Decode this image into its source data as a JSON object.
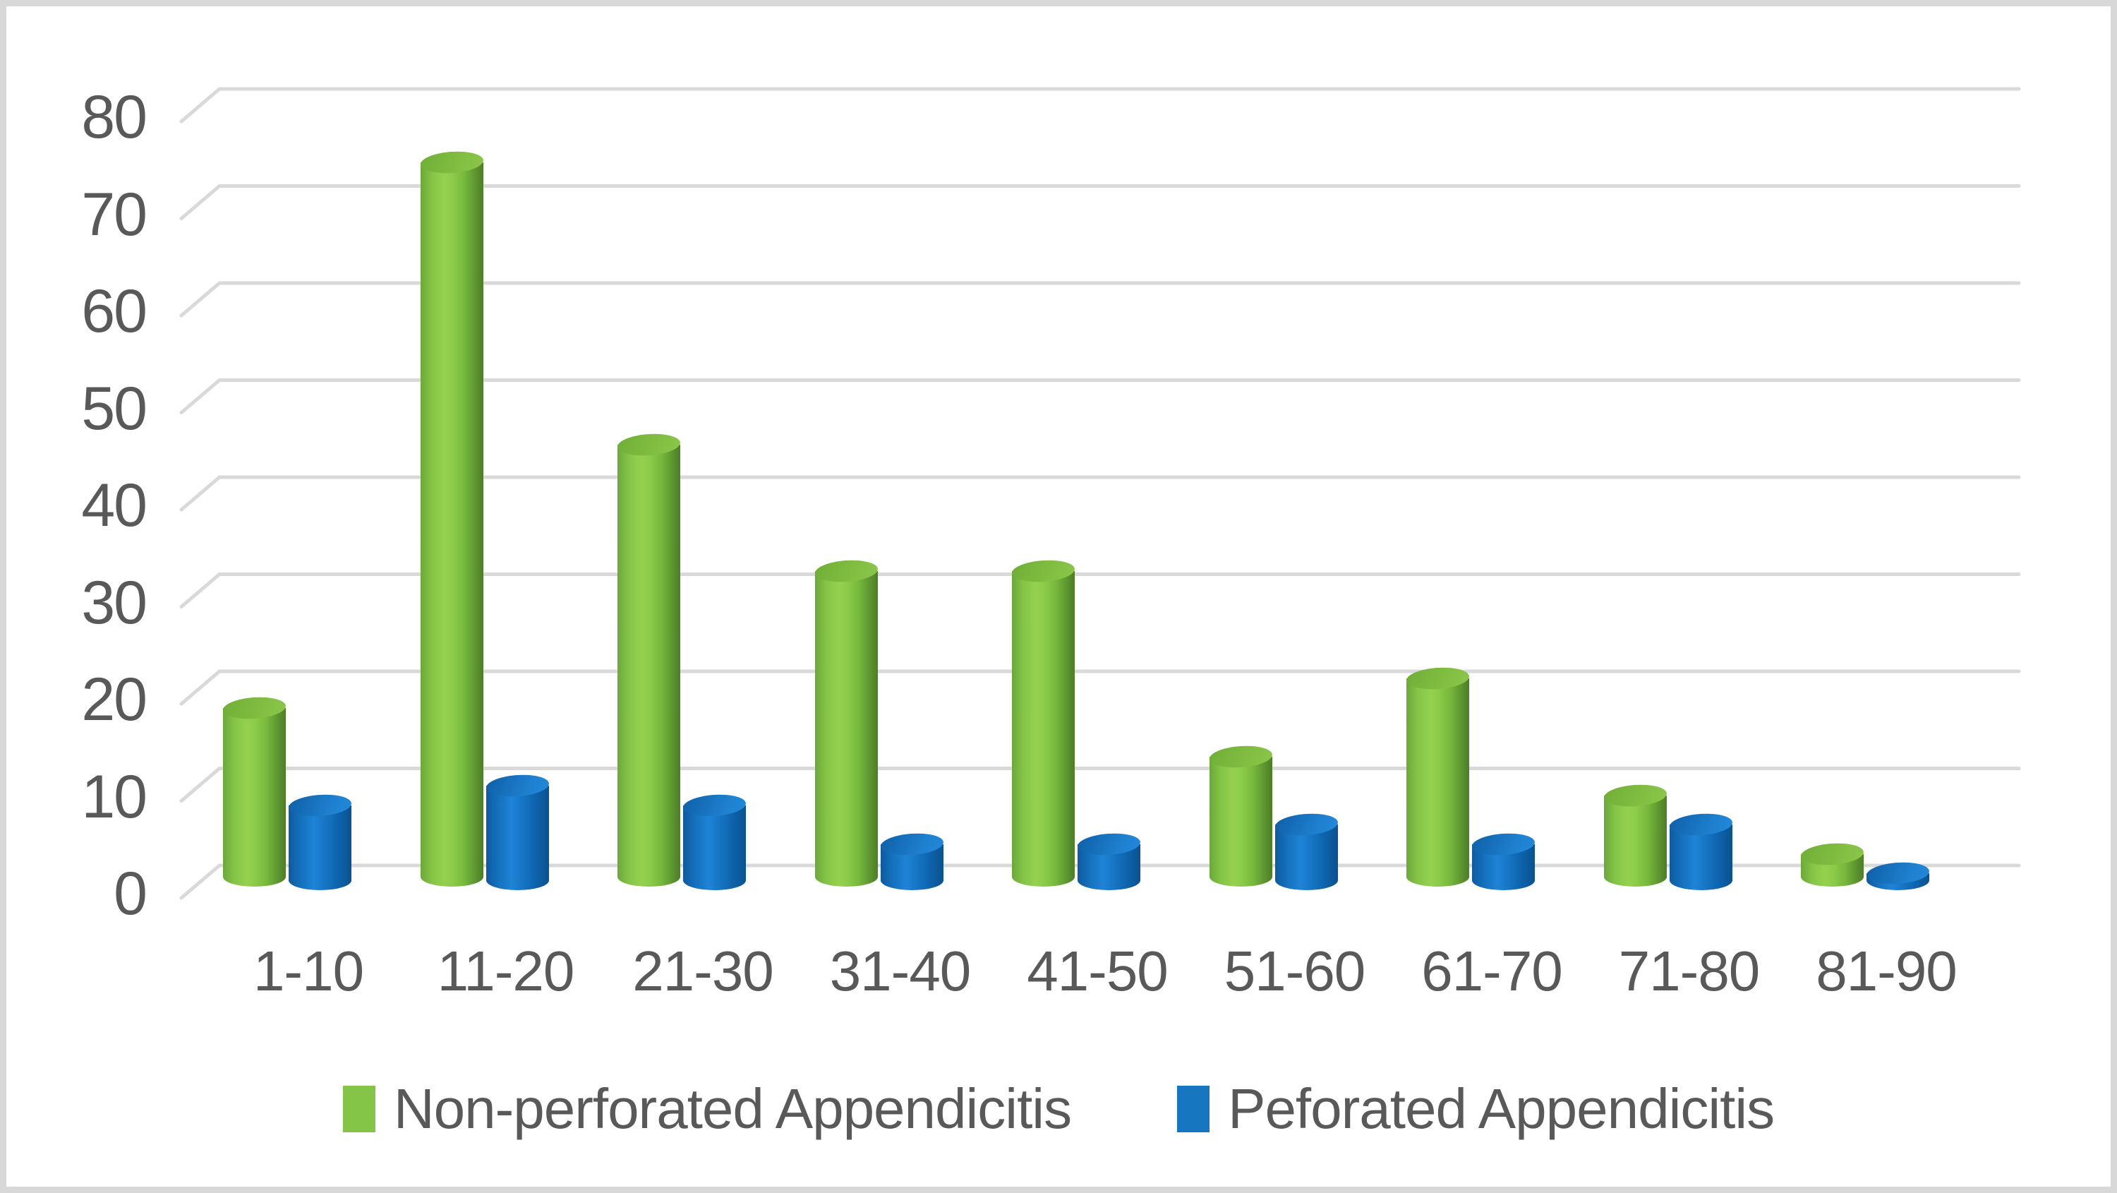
{
  "page": {
    "background": "#ffffff",
    "frame_color": "#d8d8d8",
    "text_color": "#595959"
  },
  "chart_data": {
    "type": "bar",
    "subtype": "3d-cylinder-clustered",
    "title": "",
    "xlabel": "",
    "ylabel": "",
    "categories": [
      "1-10",
      "11-20",
      "21-30",
      "31-40",
      "41-50",
      "51-60",
      "61-70",
      "71-80",
      "81-90"
    ],
    "series": [
      {
        "name": "Non-perforated Appendicitis",
        "color": "#84c446",
        "values": [
          18,
          74,
          45,
          32,
          32,
          13,
          21,
          9,
          3
        ]
      },
      {
        "name": "Peforated Appendicitis",
        "color": "#1676c0",
        "values": [
          8,
          10,
          8,
          4,
          4,
          6,
          4,
          6,
          1
        ]
      }
    ],
    "ylim": [
      0,
      80
    ],
    "yticks": [
      0,
      10,
      20,
      30,
      40,
      50,
      60,
      70,
      80
    ],
    "grid": true,
    "gridline_color": "#d9d9d9",
    "axis_label_color": "#595959",
    "legend_position": "bottom"
  }
}
